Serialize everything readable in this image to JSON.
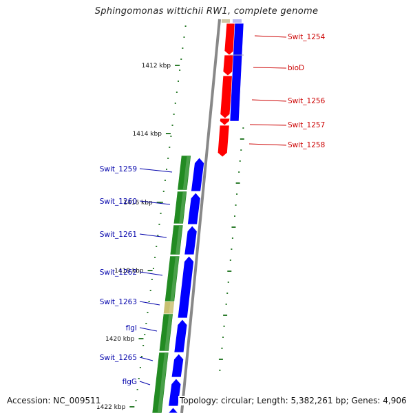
{
  "title": "Sphingomonas wittichii RW1, complete genome",
  "accession": "Accession: NC_009511",
  "topology": "Topology: circular; Length: 5,382,261 bp; Genes: 4,906",
  "colors": {
    "red_gene": "#ff0000",
    "blue_gene": "#0000ff",
    "green_gene": "#228b22",
    "ruler_tick": "#2e7d2e",
    "backbone": "#888888",
    "red_label": "#cc0000",
    "blue_label": "#0000aa"
  },
  "scale_labels": [
    "1412 kbp",
    "1414 kbp",
    "1416 kbp",
    "1418 kbp",
    "1420 kbp",
    "1422 kbp"
  ],
  "right_labels": [
    "Swit_1254",
    "bioD",
    "Swit_1256",
    "Swit_1257",
    "Swit_1258"
  ],
  "left_labels": [
    "Swit_1259",
    "Swit_1260",
    "Swit_1261",
    "Swit_1262",
    "Swit_1263",
    "flgI",
    "Swit_1265",
    "flgG"
  ]
}
